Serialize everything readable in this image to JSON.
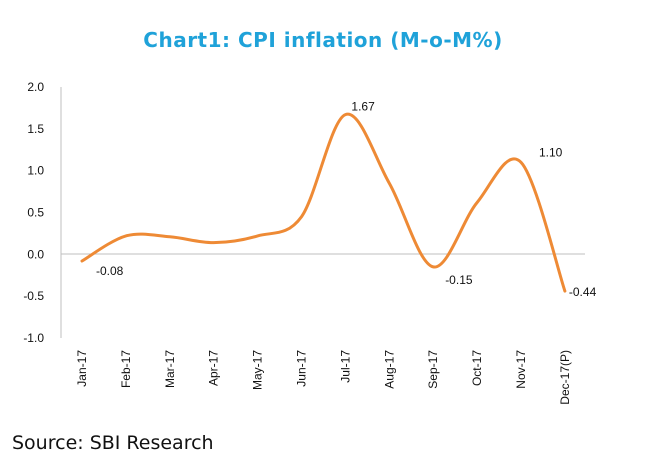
{
  "chart_data": {
    "type": "line",
    "title": "Chart1: CPI inflation (M-o-M%)",
    "categories": [
      "Jan-17",
      "Feb-17",
      "Mar-17",
      "Apr-17",
      "May-17",
      "Jun-17",
      "Jul-17",
      "Aug-17",
      "Sep-17",
      "Oct-17",
      "Nov-17",
      "Dec-17(P)"
    ],
    "series": [
      {
        "values": [
          -0.08,
          0.22,
          0.21,
          0.14,
          0.22,
          0.45,
          1.67,
          0.85,
          -0.15,
          0.62,
          1.1,
          -0.44
        ]
      }
    ],
    "data_labels": [
      {
        "index": 0,
        "text": "-0.08"
      },
      {
        "index": 6,
        "text": "1.67"
      },
      {
        "index": 8,
        "text": "-0.15"
      },
      {
        "index": 10,
        "text": "1.10"
      },
      {
        "index": 11,
        "text": "-0.44"
      }
    ],
    "y_ticks": [
      "2.0",
      "1.5",
      "1.0",
      "0.5",
      "0.0",
      "-0.5",
      "-1.0"
    ],
    "ylim": [
      -1.0,
      2.0
    ],
    "line_color": "#ee8a35",
    "title_color": "#1fa2d9",
    "grid": false
  },
  "source": "Source: SBI Research"
}
